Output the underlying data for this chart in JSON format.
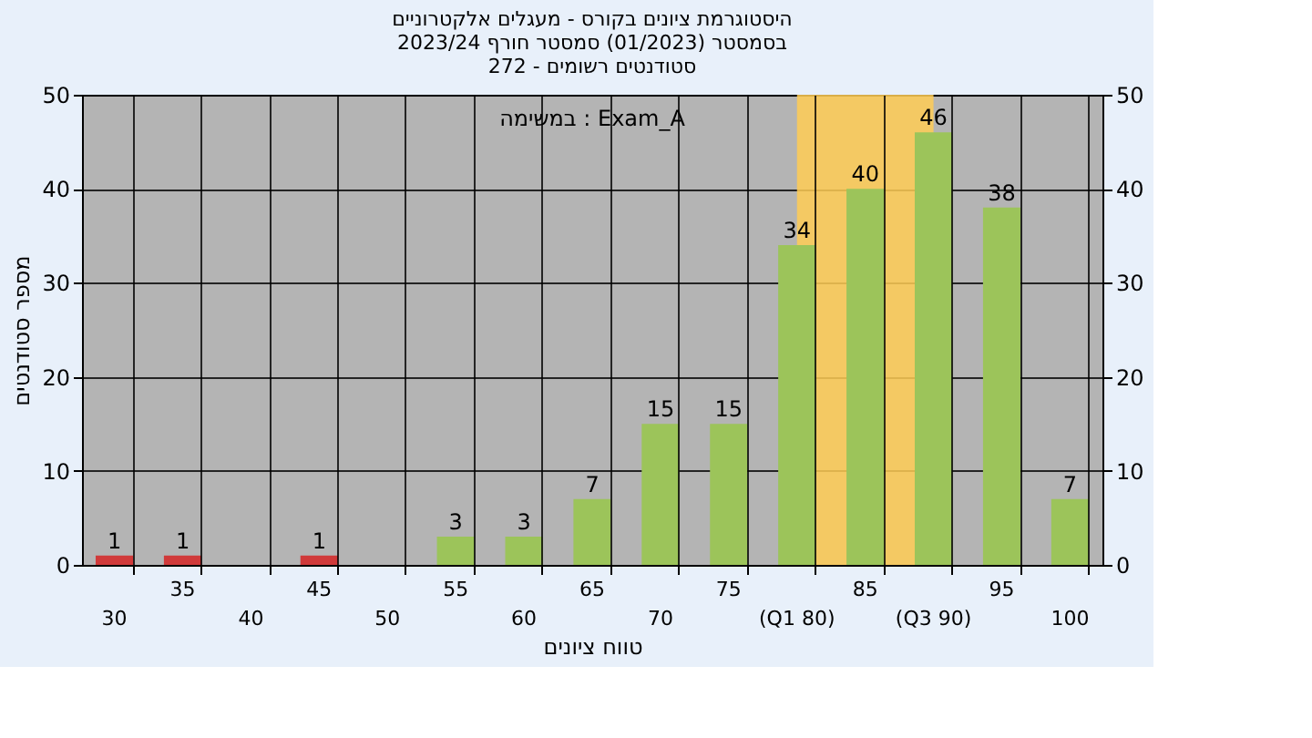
{
  "chart_data": {
    "type": "bar",
    "title": [
      "היסטוגרמת ציונים בקורס - מעגלים אלקטרוניים",
      "בסמסטר  (01/2023)  סמסטר חורף 2023/24",
      "סטודנטים רשומים - 272"
    ],
    "xlabel": "טווח ציונים",
    "ylabel": "מספר סטודנטים",
    "annotations": [
      "במשימה : Exam_A"
    ],
    "categories": [
      "30",
      "35",
      "40",
      "45",
      "50",
      "55",
      "60",
      "65",
      "70",
      "75",
      "(Q1 80)",
      "85",
      "(Q3 90)",
      "95",
      "100"
    ],
    "values": [
      1,
      1,
      0,
      1,
      0,
      3,
      3,
      7,
      15,
      15,
      34,
      40,
      46,
      38,
      7
    ],
    "value_labels": [
      "1",
      "1",
      null,
      "1",
      null,
      "3",
      "3",
      "7",
      "15",
      "15",
      "34",
      "40",
      "46",
      "38",
      "7"
    ],
    "colors": [
      "#d03a3a",
      "#d03a3a",
      "#d03a3a",
      "#d03a3a",
      "#9cc45a",
      "#9cc45a",
      "#9cc45a",
      "#9cc45a",
      "#9cc45a",
      "#9cc45a",
      "#9cc45a",
      "#9cc45a",
      "#9cc45a",
      "#9cc45a",
      "#9cc45a"
    ],
    "ylim": [
      0,
      50
    ],
    "yticks": [
      0,
      10,
      20,
      30,
      40,
      50
    ],
    "y2lim": [
      0,
      50
    ],
    "y2ticks": [
      0,
      10,
      20,
      30,
      40,
      50
    ],
    "bands": [
      {
        "axis": "x",
        "from": "(Q1 80)",
        "to": "(Q3 90)",
        "color": "#ffcc55"
      }
    ],
    "grid": true
  }
}
